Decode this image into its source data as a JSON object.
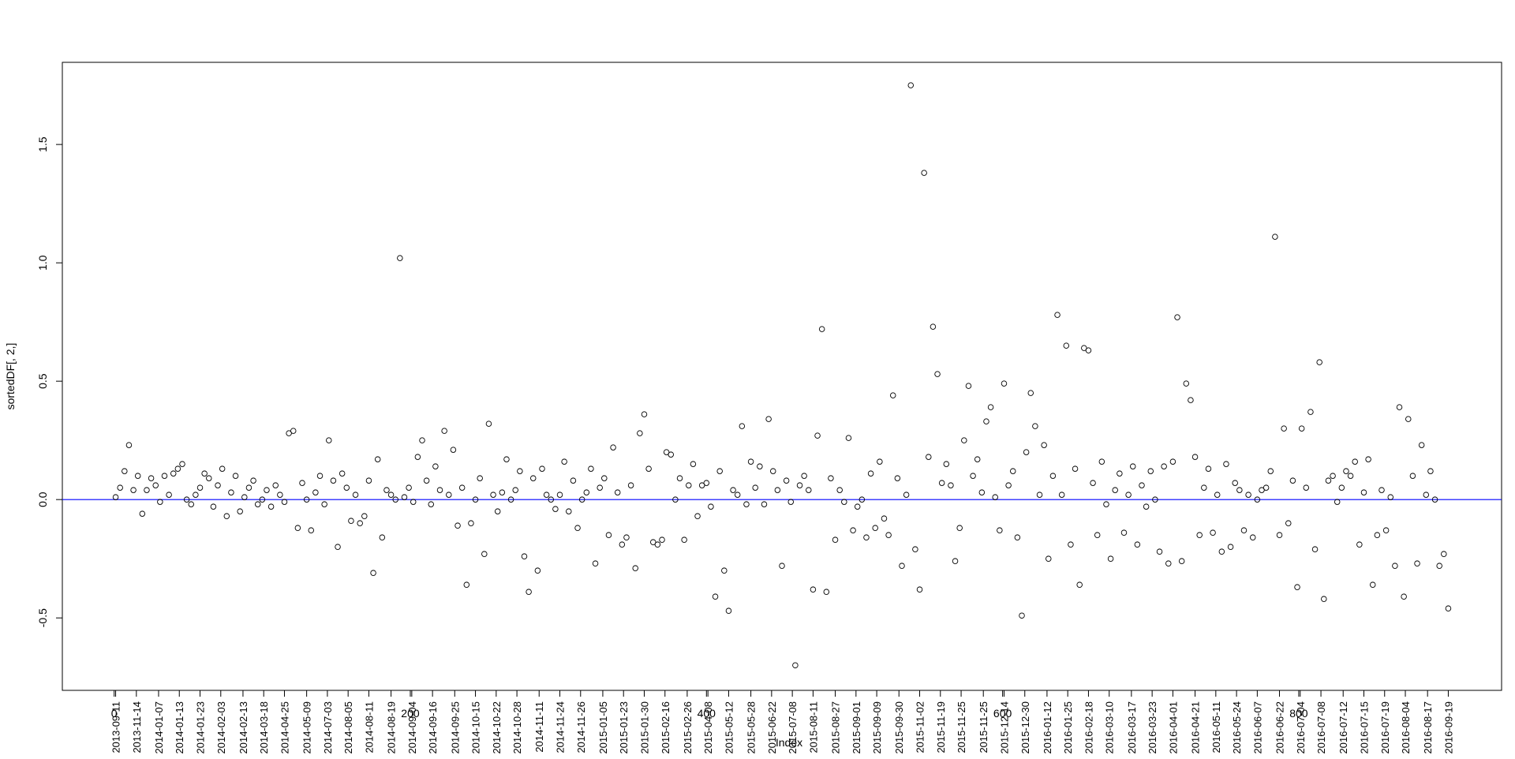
{
  "chart_data": {
    "type": "scatter",
    "x_label": "Index",
    "y_label": "sortedDF[, 2,]",
    "color": "#000000",
    "marker": "open-circle",
    "hline": {
      "value": 0,
      "color": "#0000ff"
    },
    "xlim": [
      -35,
      937
    ],
    "ylim": [
      -0.806,
      1.847
    ],
    "xticks": [
      0,
      200,
      400,
      600,
      800
    ],
    "yticks": [
      -0.5,
      {
        "value": 0,
        "label": "0.0"
      },
      0.5,
      {
        "value": 1,
        "label": "1.0"
      },
      1.5
    ],
    "date_ticks": [
      {
        "value": 1,
        "label": "2013-09-11"
      },
      {
        "value": 15,
        "label": "2013-11-14"
      },
      {
        "value": 30,
        "label": "2014-01-07"
      },
      {
        "value": 44,
        "label": "2014-01-13"
      },
      {
        "value": 58,
        "label": "2014-01-23"
      },
      {
        "value": 72,
        "label": "2014-02-03"
      },
      {
        "value": 87,
        "label": "2014-02-13"
      },
      {
        "value": 101,
        "label": "2014-03-18"
      },
      {
        "value": 115,
        "label": "2014-04-25"
      },
      {
        "value": 130,
        "label": "2014-05-09"
      },
      {
        "value": 144,
        "label": "2014-07-03"
      },
      {
        "value": 158,
        "label": "2014-08-05"
      },
      {
        "value": 172,
        "label": "2014-08-11"
      },
      {
        "value": 187,
        "label": "2014-08-19"
      },
      {
        "value": 201,
        "label": "2014-09-04"
      },
      {
        "value": 215,
        "label": "2014-09-16"
      },
      {
        "value": 230,
        "label": "2014-09-25"
      },
      {
        "value": 244,
        "label": "2014-10-15"
      },
      {
        "value": 258,
        "label": "2014-10-22"
      },
      {
        "value": 272,
        "label": "2014-10-28"
      },
      {
        "value": 287,
        "label": "2014-11-11"
      },
      {
        "value": 301,
        "label": "2014-11-24"
      },
      {
        "value": 315,
        "label": "2014-11-26"
      },
      {
        "value": 330,
        "label": "2015-01-05"
      },
      {
        "value": 344,
        "label": "2015-01-23"
      },
      {
        "value": 358,
        "label": "2015-01-30"
      },
      {
        "value": 372,
        "label": "2015-02-16"
      },
      {
        "value": 387,
        "label": "2015-02-26"
      },
      {
        "value": 401,
        "label": "2015-04-08"
      },
      {
        "value": 415,
        "label": "2015-05-12"
      },
      {
        "value": 430,
        "label": "2015-05-28"
      },
      {
        "value": 444,
        "label": "2015-06-22"
      },
      {
        "value": 458,
        "label": "2015-07-08"
      },
      {
        "value": 472,
        "label": "2015-08-11"
      },
      {
        "value": 487,
        "label": "2015-08-27"
      },
      {
        "value": 501,
        "label": "2015-09-01"
      },
      {
        "value": 515,
        "label": "2015-09-09"
      },
      {
        "value": 530,
        "label": "2015-09-30"
      },
      {
        "value": 544,
        "label": "2015-11-02"
      },
      {
        "value": 558,
        "label": "2015-11-19"
      },
      {
        "value": 572,
        "label": "2015-11-25"
      },
      {
        "value": 587,
        "label": "2015-11-25"
      },
      {
        "value": 601,
        "label": "2015-12-14"
      },
      {
        "value": 615,
        "label": "2015-12-30"
      },
      {
        "value": 630,
        "label": "2016-01-12"
      },
      {
        "value": 644,
        "label": "2016-01-25"
      },
      {
        "value": 658,
        "label": "2016-02-18"
      },
      {
        "value": 672,
        "label": "2016-03-10"
      },
      {
        "value": 687,
        "label": "2016-03-17"
      },
      {
        "value": 701,
        "label": "2016-03-23"
      },
      {
        "value": 715,
        "label": "2016-04-01"
      },
      {
        "value": 730,
        "label": "2016-04-21"
      },
      {
        "value": 744,
        "label": "2016-05-11"
      },
      {
        "value": 758,
        "label": "2016-05-24"
      },
      {
        "value": 772,
        "label": "2016-06-07"
      },
      {
        "value": 787,
        "label": "2016-06-22"
      },
      {
        "value": 801,
        "label": "2016-07-04"
      },
      {
        "value": 815,
        "label": "2016-07-08"
      },
      {
        "value": 830,
        "label": "2016-07-12"
      },
      {
        "value": 844,
        "label": "2016-07-15"
      },
      {
        "value": 858,
        "label": "2016-07-19"
      },
      {
        "value": 872,
        "label": "2016-08-04"
      },
      {
        "value": 887,
        "label": "2016-08-17"
      },
      {
        "value": 901,
        "label": "2016-09-19"
      }
    ],
    "x": [
      1,
      4,
      7,
      10,
      13,
      16,
      19,
      22,
      25,
      28,
      31,
      34,
      37,
      40,
      43,
      46,
      49,
      52,
      55,
      58,
      61,
      64,
      67,
      70,
      73,
      76,
      79,
      82,
      85,
      88,
      91,
      94,
      97,
      100,
      103,
      106,
      109,
      112,
      115,
      118,
      121,
      124,
      127,
      130,
      133,
      136,
      139,
      142,
      145,
      148,
      151,
      154,
      157,
      160,
      163,
      166,
      169,
      172,
      175,
      178,
      181,
      184,
      187,
      190,
      193,
      196,
      199,
      202,
      205,
      208,
      211,
      214,
      217,
      220,
      223,
      226,
      229,
      232,
      235,
      238,
      241,
      244,
      247,
      250,
      253,
      256,
      259,
      262,
      265,
      268,
      271,
      274,
      277,
      280,
      283,
      286,
      289,
      292,
      295,
      298,
      301,
      304,
      307,
      310,
      313,
      316,
      319,
      322,
      325,
      328,
      331,
      334,
      337,
      340,
      343,
      346,
      349,
      352,
      355,
      358,
      361,
      364,
      367,
      370,
      373,
      376,
      379,
      382,
      385,
      388,
      391,
      394,
      397,
      400,
      403,
      406,
      409,
      412,
      415,
      418,
      421,
      424,
      427,
      430,
      433,
      436,
      439,
      442,
      445,
      448,
      451,
      454,
      457,
      460,
      463,
      466,
      469,
      472,
      475,
      478,
      481,
      484,
      487,
      490,
      493,
      496,
      499,
      502,
      505,
      508,
      511,
      514,
      517,
      520,
      523,
      526,
      529,
      532,
      535,
      538,
      541,
      544,
      547,
      550,
      553,
      556,
      559,
      562,
      565,
      568,
      571,
      574,
      577,
      580,
      583,
      586,
      589,
      592,
      595,
      598,
      601,
      604,
      607,
      610,
      613,
      616,
      619,
      622,
      625,
      628,
      631,
      634,
      637,
      640,
      643,
      646,
      649,
      652,
      655,
      658,
      661,
      664,
      667,
      670,
      673,
      676,
      679,
      682,
      685,
      688,
      691,
      694,
      697,
      700,
      703,
      706,
      709,
      712,
      715,
      718,
      721,
      724,
      727,
      730,
      733,
      736,
      739,
      742,
      745,
      748,
      751,
      754,
      757,
      760,
      763,
      766,
      769,
      772,
      775,
      778,
      781,
      784,
      787,
      790,
      793,
      796,
      799,
      802,
      805,
      808,
      811,
      814,
      817,
      820,
      823,
      826,
      829,
      832,
      835,
      838,
      841,
      844,
      847,
      850,
      853,
      856,
      859,
      862,
      865,
      868,
      871,
      874,
      877,
      880,
      883,
      886,
      889,
      892,
      895,
      898,
      901
    ],
    "values": [
      0.01,
      0.05,
      0.12,
      0.23,
      0.04,
      0.1,
      -0.06,
      0.04,
      0.09,
      0.06,
      -0.01,
      0.1,
      0.02,
      0.11,
      0.13,
      0.15,
      0.0,
      -0.02,
      0.02,
      0.05,
      0.11,
      0.09,
      -0.03,
      0.06,
      0.13,
      -0.07,
      0.03,
      0.1,
      -0.05,
      0.01,
      0.05,
      0.08,
      -0.02,
      0.0,
      0.04,
      -0.03,
      0.06,
      0.02,
      -0.01,
      0.28,
      0.29,
      -0.12,
      0.07,
      0.0,
      -0.13,
      0.03,
      0.1,
      -0.02,
      0.25,
      0.08,
      -0.2,
      0.11,
      0.05,
      -0.09,
      0.02,
      -0.1,
      -0.07,
      0.08,
      -0.31,
      0.17,
      -0.16,
      0.04,
      0.02,
      0.0,
      1.02,
      0.01,
      0.05,
      -0.01,
      0.18,
      0.25,
      0.08,
      -0.02,
      0.14,
      0.04,
      0.29,
      0.02,
      0.21,
      -0.11,
      0.05,
      -0.36,
      -0.1,
      0.0,
      0.09,
      -0.23,
      0.32,
      0.02,
      -0.05,
      0.03,
      0.17,
      0.0,
      0.04,
      0.12,
      -0.24,
      -0.39,
      0.09,
      -0.3,
      0.13,
      0.02,
      0.0,
      -0.04,
      0.02,
      0.16,
      -0.05,
      0.08,
      -0.12,
      0.0,
      0.03,
      0.13,
      -0.27,
      0.05,
      0.09,
      -0.15,
      0.22,
      0.03,
      -0.19,
      -0.16,
      0.06,
      -0.29,
      0.28,
      0.36,
      0.13,
      -0.18,
      -0.19,
      -0.17,
      0.2,
      0.19,
      0.0,
      0.09,
      -0.17,
      0.06,
      0.15,
      -0.07,
      0.06,
      0.07,
      -0.03,
      -0.41,
      0.12,
      -0.3,
      -0.47,
      0.04,
      0.02,
      0.31,
      -0.02,
      0.16,
      0.05,
      0.14,
      -0.02,
      0.34,
      0.12,
      0.04,
      -0.28,
      0.08,
      -0.01,
      -0.7,
      0.06,
      0.1,
      0.04,
      -0.38,
      0.27,
      0.72,
      -0.39,
      0.09,
      -0.17,
      0.04,
      -0.01,
      0.26,
      -0.13,
      -0.03,
      0.0,
      -0.16,
      0.11,
      -0.12,
      0.16,
      -0.08,
      -0.15,
      0.44,
      0.09,
      -0.28,
      0.02,
      1.75,
      -0.21,
      -0.38,
      1.38,
      0.18,
      0.73,
      0.53,
      0.07,
      0.15,
      0.06,
      -0.26,
      -0.12,
      0.25,
      0.48,
      0.1,
      0.17,
      0.03,
      0.33,
      0.39,
      0.01,
      -0.13,
      0.49,
      0.06,
      0.12,
      -0.16,
      -0.49,
      0.2,
      0.45,
      0.31,
      0.02,
      0.23,
      -0.25,
      0.1,
      0.78,
      0.02,
      0.65,
      -0.19,
      0.13,
      -0.36,
      0.64,
      0.63,
      0.07,
      -0.15,
      0.16,
      -0.02,
      -0.25,
      0.04,
      0.11,
      -0.14,
      0.02,
      0.14,
      -0.19,
      0.06,
      -0.03,
      0.12,
      0.0,
      -0.22,
      0.14,
      -0.27,
      0.16,
      0.77,
      -0.26,
      0.49,
      0.42,
      0.18,
      -0.15,
      0.05,
      0.13,
      -0.14,
      0.02,
      -0.22,
      0.15,
      -0.2,
      0.07,
      0.04,
      -0.13,
      0.02,
      -0.16,
      0.0,
      0.04,
      0.05,
      0.12,
      1.11,
      -0.15,
      0.3,
      -0.1,
      0.08,
      -0.37,
      0.3,
      0.05,
      0.37,
      -0.21,
      0.58,
      -0.42,
      0.08,
      0.1,
      -0.01,
      0.05,
      0.12,
      0.1,
      0.16,
      -0.19,
      0.03,
      0.17,
      -0.36,
      -0.15,
      0.04,
      -0.13,
      0.01,
      -0.28,
      0.39,
      -0.41,
      0.34,
      0.1,
      -0.27,
      0.23,
      0.02,
      0.12,
      0.0,
      -0.28,
      -0.23,
      -0.46
    ]
  }
}
